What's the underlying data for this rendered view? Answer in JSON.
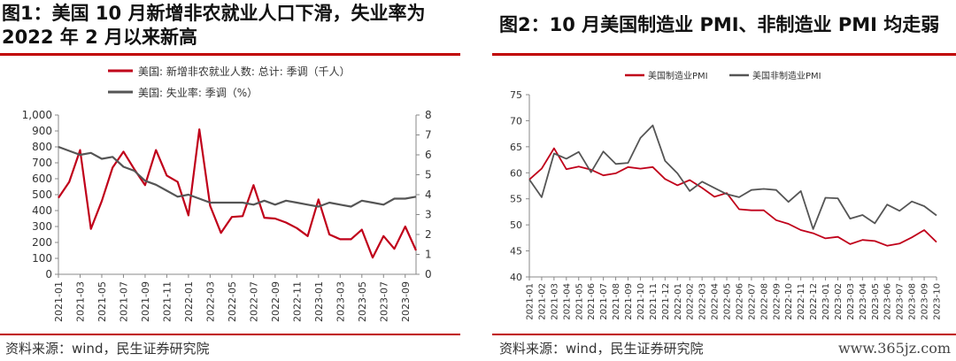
{
  "panels": [
    {
      "title": "图1：美国 10 月新增非农就业人口下滑，失业率为2022 年 2 月以来新高",
      "source": "资料来源：wind，民生证券研究院"
    },
    {
      "title": "图2：10 月美国制造业 PMI、非制造业 PMI 均走弱",
      "source": "资料来源：wind，民生证券研究院"
    }
  ],
  "watermark": "www.365jz.com",
  "colors": {
    "red": "#c0001a",
    "gray": "#555555",
    "rule": "#c00000"
  },
  "chart_data": [
    {
      "type": "line",
      "legend_position": "top",
      "grid": false,
      "x": [
        "2021-01",
        "2021-02",
        "2021-03",
        "2021-04",
        "2021-05",
        "2021-06",
        "2021-07",
        "2021-08",
        "2021-09",
        "2021-10",
        "2021-11",
        "2021-12",
        "2022-01",
        "2022-02",
        "2022-03",
        "2022-04",
        "2022-05",
        "2022-06",
        "2022-07",
        "2022-08",
        "2022-09",
        "2022-10",
        "2022-11",
        "2022-12",
        "2023-01",
        "2023-02",
        "2023-03",
        "2023-04",
        "2023-05",
        "2023-06",
        "2023-07",
        "2023-08",
        "2023-09",
        "2023-10"
      ],
      "x_tick_labels": [
        "2021-01",
        "2021-03",
        "2021-05",
        "2021-07",
        "2021-09",
        "2021-11",
        "2022-01",
        "2022-03",
        "2022-05",
        "2022-07",
        "2022-09",
        "2022-11",
        "2023-01",
        "2023-03",
        "2023-05",
        "2023-07",
        "2023-09"
      ],
      "y_left_ticks": [
        "0",
        "100",
        "200",
        "300",
        "400",
        "500",
        "600",
        "700",
        "800",
        "900",
        "1,000"
      ],
      "y_left_range": [
        0,
        1000
      ],
      "y_right_ticks": [
        "0",
        "1",
        "2",
        "3",
        "4",
        "5",
        "6",
        "7",
        "8"
      ],
      "y_right_range": [
        0,
        8
      ],
      "series": [
        {
          "name": "美国: 新增非农就业人数: 总计: 季调（千人）",
          "axis": "left",
          "color": "#c0001a",
          "values": [
            480,
            580,
            780,
            285,
            460,
            670,
            770,
            660,
            560,
            780,
            620,
            580,
            370,
            910,
            430,
            260,
            360,
            365,
            560,
            355,
            350,
            325,
            290,
            240,
            470,
            250,
            220,
            220,
            280,
            105,
            240,
            160,
            300,
            150
          ]
        },
        {
          "name": "美国: 失业率: 季调（%）",
          "axis": "right",
          "color": "#555555",
          "values": [
            6.4,
            6.2,
            6.0,
            6.1,
            5.8,
            5.9,
            5.4,
            5.2,
            4.7,
            4.5,
            4.2,
            3.9,
            4.0,
            3.8,
            3.6,
            3.6,
            3.6,
            3.6,
            3.5,
            3.7,
            3.5,
            3.7,
            3.6,
            3.5,
            3.4,
            3.6,
            3.5,
            3.4,
            3.7,
            3.6,
            3.5,
            3.8,
            3.8,
            3.9
          ]
        }
      ]
    },
    {
      "type": "line",
      "legend_position": "top",
      "grid": false,
      "x": [
        "2021-01",
        "2021-02",
        "2021-03",
        "2021-04",
        "2021-05",
        "2021-06",
        "2021-07",
        "2021-08",
        "2021-09",
        "2021-10",
        "2021-11",
        "2021-12",
        "2022-01",
        "2022-02",
        "2022-03",
        "2022-04",
        "2022-05",
        "2022-06",
        "2022-07",
        "2022-08",
        "2022-09",
        "2022-10",
        "2022-11",
        "2022-12",
        "2023-01",
        "2023-02",
        "2023-03",
        "2023-04",
        "2023-05",
        "2023-06",
        "2023-07",
        "2023-08",
        "2023-09",
        "2023-10"
      ],
      "x_tick_labels": [
        "2021-01",
        "2021-02",
        "2021-03",
        "2021-04",
        "2021-05",
        "2021-06",
        "2021-07",
        "2021-08",
        "2021-09",
        "2021-10",
        "2021-11",
        "2021-12",
        "2022-01",
        "2022-02",
        "2022-03",
        "2022-04",
        "2022-05",
        "2022-06",
        "2022-07",
        "2022-08",
        "2022-09",
        "2022-10",
        "2022-11",
        "2022-12",
        "2023-01",
        "2023-02",
        "2023-03",
        "2023-04",
        "2023-05",
        "2023-06",
        "2023-07",
        "2023-08",
        "2023-09",
        "2023-10"
      ],
      "y_ticks": [
        "40",
        "45",
        "50",
        "55",
        "60",
        "65",
        "70",
        "75"
      ],
      "y_range": [
        40,
        75
      ],
      "series": [
        {
          "name": "美国制造业PMI",
          "color": "#c0001a",
          "values": [
            58.7,
            60.8,
            64.7,
            60.7,
            61.2,
            60.6,
            59.5,
            59.9,
            61.1,
            60.8,
            61.1,
            58.8,
            57.6,
            58.6,
            57.1,
            55.4,
            56.1,
            53.0,
            52.8,
            52.8,
            50.9,
            50.2,
            49.0,
            48.4,
            47.4,
            47.7,
            46.3,
            47.1,
            46.9,
            46.0,
            46.4,
            47.6,
            49.0,
            46.7
          ]
        },
        {
          "name": "美国非制造业PMI",
          "color": "#555555",
          "values": [
            58.7,
            55.3,
            63.7,
            62.7,
            64.0,
            60.1,
            64.1,
            61.7,
            61.9,
            66.7,
            69.1,
            62.3,
            59.9,
            56.5,
            58.3,
            57.1,
            55.9,
            55.3,
            56.7,
            56.9,
            56.7,
            54.4,
            56.5,
            49.2,
            55.2,
            55.1,
            51.2,
            51.9,
            50.3,
            53.9,
            52.7,
            54.5,
            53.6,
            51.8
          ]
        }
      ]
    }
  ]
}
